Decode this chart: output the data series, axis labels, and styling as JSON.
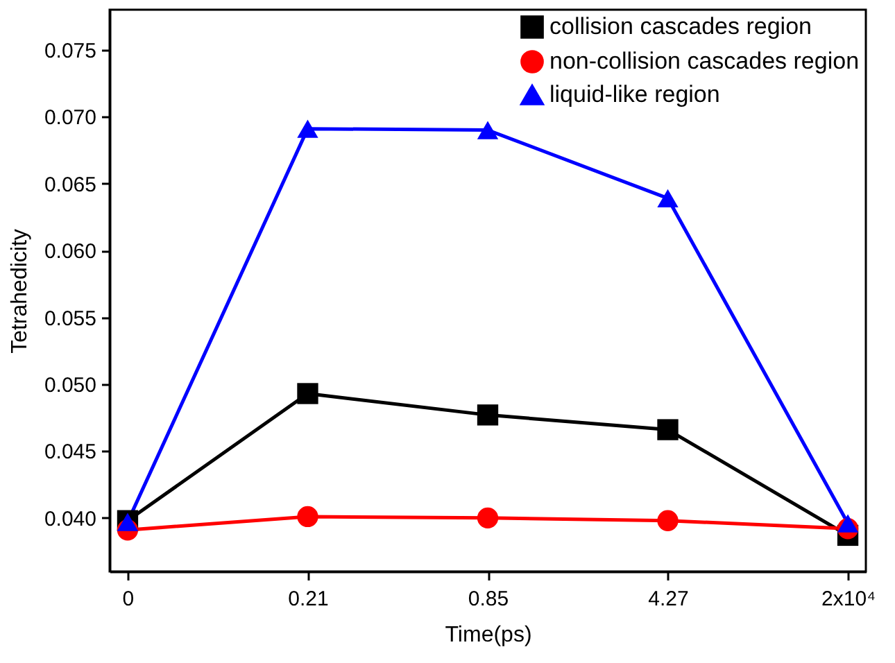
{
  "chart_data": {
    "type": "line",
    "xlabel": "Time(ps)",
    "ylabel": "Tetrahedicity",
    "categories": [
      "0",
      "0.21",
      "0.85",
      "4.27",
      "2x10⁴"
    ],
    "series": [
      {
        "name": "collision cascades region",
        "color": "#000000",
        "marker": "square",
        "values": [
          0.0398,
          0.0493,
          0.0477,
          0.0466,
          0.0387
        ]
      },
      {
        "name": "non-collision cascades region",
        "color": "#ff0000",
        "marker": "circle",
        "values": [
          0.0391,
          0.0401,
          0.04,
          0.0398,
          0.0392
        ]
      },
      {
        "name": "liquid-like region",
        "color": "#0000ff",
        "marker": "triangle",
        "values": [
          0.0397,
          0.0691,
          0.069,
          0.0639,
          0.0396
        ]
      }
    ],
    "ylim": [
      0.036,
      0.078
    ],
    "yticks": [
      {
        "value": 0.04,
        "label": "0.040"
      },
      {
        "value": 0.045,
        "label": "0.045"
      },
      {
        "value": 0.05,
        "label": "0.050"
      },
      {
        "value": 0.055,
        "label": "0.055"
      },
      {
        "value": 0.06,
        "label": "0.060"
      },
      {
        "value": 0.065,
        "label": "0.065"
      },
      {
        "value": 0.07,
        "label": "0.070"
      },
      {
        "value": 0.075,
        "label": "0.075"
      }
    ],
    "grid": false,
    "legend": "top right",
    "line_style": "solid"
  }
}
